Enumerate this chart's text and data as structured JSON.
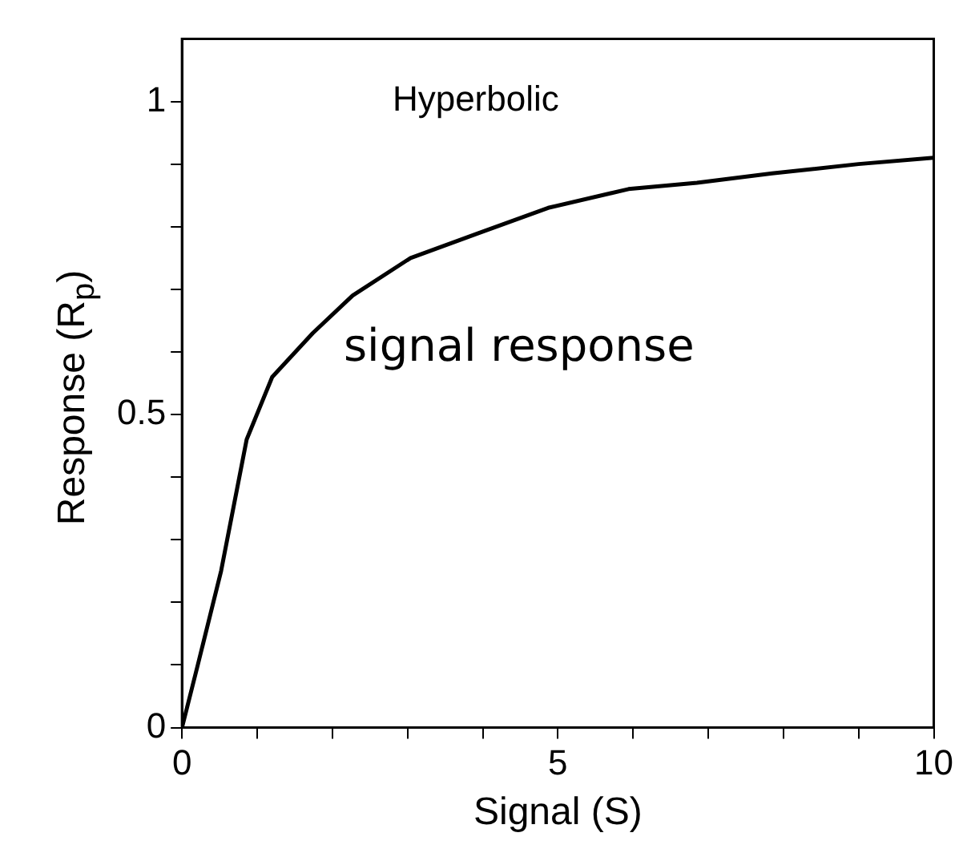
{
  "chart_data": {
    "type": "line",
    "xlabel": "Signal (S)",
    "ylabel": "Response (R$_{p}$)",
    "annotations": [
      "Hyperbolic",
      "signal response"
    ],
    "x": [
      0,
      0.21,
      0.52,
      0.86,
      1.2,
      1.74,
      2.27,
      3.04,
      3.95,
      4.87,
      5.94,
      6.85,
      7.85,
      9,
      10
    ],
    "series": [
      {
        "color": "#000000",
        "values": [
          0,
          0.1,
          0.25,
          0.46,
          0.56,
          0.63,
          0.69,
          0.75,
          0.79,
          0.83,
          0.86,
          0.87,
          0.885,
          0.9,
          0.91
        ]
      }
    ],
    "xlim": [
      0,
      10
    ],
    "xticks": [
      0,
      {
        "value": 1,
        "label": null
      },
      {
        "value": 2,
        "label": null
      },
      {
        "value": 3,
        "label": null
      },
      {
        "value": 4,
        "label": null
      },
      5,
      {
        "value": 6,
        "label": null
      },
      {
        "value": 7,
        "label": null
      },
      {
        "value": 8,
        "label": null
      },
      {
        "value": 9,
        "label": null
      },
      10
    ],
    "ylim": [
      0,
      1.1
    ],
    "yticks": [
      0,
      {
        "value": 0.1,
        "label": null
      },
      {
        "value": 0.2,
        "label": null
      },
      {
        "value": 0.3,
        "label": null
      },
      {
        "value": 0.4,
        "label": null
      },
      0.5,
      {
        "value": 0.6,
        "label": null
      },
      {
        "value": 0.7,
        "label": null
      },
      {
        "value": 0.8,
        "label": null
      },
      {
        "value": 0.9,
        "label": null
      },
      1
    ],
    "grid": false,
    "legend": false,
    "marker": "none",
    "line_style": "solid"
  }
}
